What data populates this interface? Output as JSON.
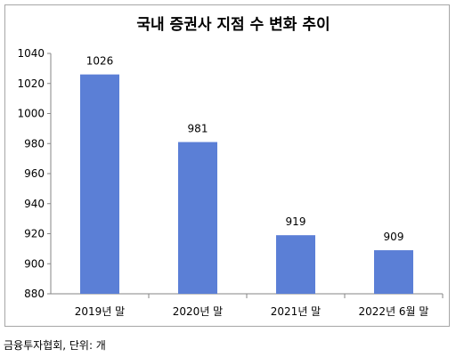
{
  "chart_data": {
    "type": "bar",
    "title": "국내 증권사 지점 수 변화 추이",
    "categories": [
      "2019년 말",
      "2020년 말",
      "2021년 말",
      "2022년 6월 말"
    ],
    "series": [
      {
        "values": [
          1026,
          981,
          919,
          909
        ]
      }
    ],
    "data_labels": [
      "1026",
      "981",
      "919",
      "909"
    ],
    "ylim": [
      880,
      1040
    ],
    "yticks": [
      880,
      900,
      920,
      940,
      960,
      980,
      1000,
      1020,
      1040
    ],
    "ytick_labels": [
      "880",
      "900",
      "920",
      "940",
      "960",
      "980",
      "1000",
      "1020",
      "1040"
    ],
    "xlabel": "",
    "ylabel": "",
    "grid": false,
    "legend": "none",
    "bar_color": "#5b7fd6"
  },
  "source_note": "금융투자협회, 단위: 개"
}
